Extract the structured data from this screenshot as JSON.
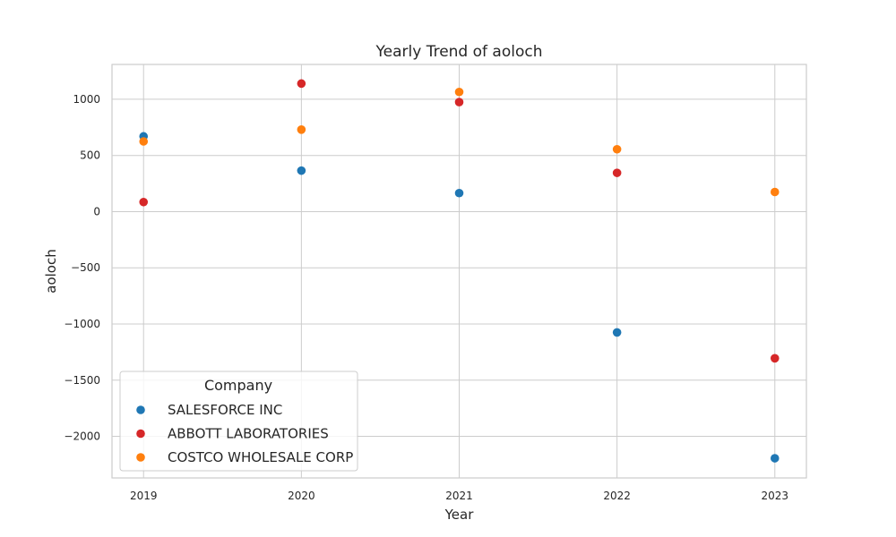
{
  "chart_data": {
    "type": "scatter",
    "title": "Yearly Trend of aoloch",
    "xlabel": "Year",
    "ylabel": "aoloch",
    "x": [
      2019,
      2020,
      2021,
      2022,
      2023
    ],
    "xlim": [
      2018.8,
      2023.2
    ],
    "ylim": [
      -2370,
      1310
    ],
    "yticks": [
      1000,
      500,
      0,
      -500,
      -1000,
      -1500,
      -2000
    ],
    "ytick_labels": [
      "1000",
      "500",
      "0",
      "−500",
      "−1000",
      "−1500",
      "−2000"
    ],
    "xtick_labels": [
      "2019",
      "2020",
      "2021",
      "2022",
      "2023"
    ],
    "grid": true,
    "legend": {
      "title": "Company",
      "placement": "lower-left"
    },
    "series": [
      {
        "name": "SALESFORCE INC",
        "color": "#1f77b4",
        "values": [
          670,
          365,
          165,
          -1075,
          -2195
        ]
      },
      {
        "name": "ABBOTT LABORATORIES",
        "color": "#d62728",
        "values": [
          85,
          1140,
          975,
          345,
          -1305
        ]
      },
      {
        "name": "COSTCO WHOLESALE CORP",
        "color": "#ff7f0e",
        "values": [
          625,
          730,
          1065,
          555,
          175
        ]
      }
    ]
  }
}
